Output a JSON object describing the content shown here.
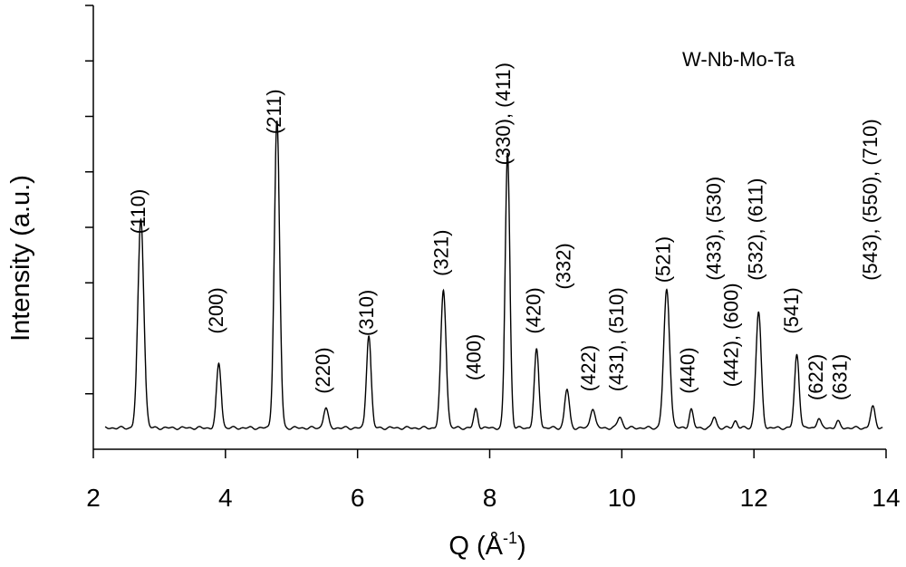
{
  "chart_data": {
    "type": "line",
    "title": "",
    "annotation": "W-Nb-Mo-Ta",
    "xlabel": "Q  (Å",
    "xlabel_sup": "-1",
    "xlabel_close": ")",
    "ylabel": "Intensity (a.u.)",
    "xlim": [
      2,
      14
    ],
    "ylim": [
      0,
      100
    ],
    "xticks": [
      2,
      4,
      6,
      8,
      10,
      12,
      14
    ],
    "xtick_labels": [
      "2",
      "4",
      "6",
      "8",
      "10",
      "12",
      "14"
    ],
    "yticks_count": 8,
    "grid": false,
    "legend": "none",
    "baseline": 4.8,
    "series": [
      {
        "peaks": [
          {
            "q": 2.72,
            "height": 47,
            "width": 0.045
          },
          {
            "q": 3.9,
            "height": 14.5,
            "width": 0.035
          },
          {
            "q": 4.78,
            "height": 69,
            "width": 0.04
          },
          {
            "q": 5.52,
            "height": 4.5,
            "width": 0.035
          },
          {
            "q": 6.17,
            "height": 21,
            "width": 0.035
          },
          {
            "q": 7.3,
            "height": 31,
            "width": 0.04
          },
          {
            "q": 7.79,
            "height": 4.2,
            "width": 0.03
          },
          {
            "q": 8.27,
            "height": 62,
            "width": 0.035
          },
          {
            "q": 8.71,
            "height": 17.5,
            "width": 0.035
          },
          {
            "q": 9.17,
            "height": 8.7,
            "width": 0.035
          },
          {
            "q": 9.56,
            "height": 4.5,
            "width": 0.035
          },
          {
            "q": 9.97,
            "height": 2.5,
            "width": 0.035
          },
          {
            "q": 10.68,
            "height": 31,
            "width": 0.045
          },
          {
            "q": 11.05,
            "height": 4.2,
            "width": 0.03
          },
          {
            "q": 11.4,
            "height": 2.5,
            "width": 0.03
          },
          {
            "q": 11.72,
            "height": 1.6,
            "width": 0.03
          },
          {
            "q": 12.07,
            "height": 26,
            "width": 0.04
          },
          {
            "q": 12.65,
            "height": 16.5,
            "width": 0.035
          },
          {
            "q": 12.98,
            "height": 2.2,
            "width": 0.03
          },
          {
            "q": 13.27,
            "height": 1.4,
            "width": 0.03
          },
          {
            "q": 13.8,
            "height": 4.7,
            "width": 0.035
          }
        ]
      }
    ],
    "peak_labels": [
      {
        "text": "(110)",
        "q": 2.78,
        "y": 48.5
      },
      {
        "text": "(200)",
        "q": 3.96,
        "y": 26
      },
      {
        "text": "(211)",
        "q": 4.84,
        "y": 71
      },
      {
        "text": "(220)",
        "q": 5.58,
        "y": 12.5
      },
      {
        "text": "(310)",
        "q": 6.24,
        "y": 25.5
      },
      {
        "text": "(321)",
        "q": 7.37,
        "y": 39
      },
      {
        "text": "(400)",
        "q": 7.86,
        "y": 15.5
      },
      {
        "text": "(330), (411)",
        "q": 8.31,
        "y": 64
      },
      {
        "text": "(420)",
        "q": 8.77,
        "y": 26
      },
      {
        "text": "(332)",
        "q": 9.22,
        "y": 36
      },
      {
        "text": "(422)",
        "q": 9.6,
        "y": 13
      },
      {
        "text": "(431), (510)",
        "q": 10.02,
        "y": 13
      },
      {
        "text": "(521)",
        "q": 10.73,
        "y": 37.5
      },
      {
        "text": "(440)",
        "q": 11.1,
        "y": 12.5
      },
      {
        "text": "(442), (600)",
        "q": 11.76,
        "y": 14
      },
      {
        "text": "(433), (530)",
        "q": 11.5,
        "y": 38
      },
      {
        "text": "(532), (611)",
        "q": 12.13,
        "y": 38
      },
      {
        "text": "(541)",
        "q": 12.67,
        "y": 26
      },
      {
        "text": "(622)",
        "q": 13.04,
        "y": 11
      },
      {
        "text": "(631)",
        "q": 13.4,
        "y": 11
      },
      {
        "text": "(543), (550), (710)",
        "q": 13.86,
        "y": 38
      }
    ]
  }
}
